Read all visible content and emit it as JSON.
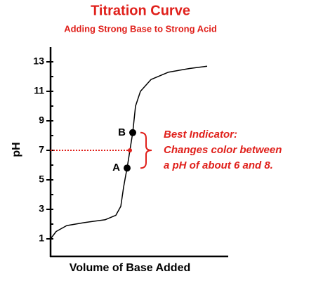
{
  "chart_data": {
    "type": "line",
    "title": "Titration Curve",
    "subtitle": "Adding Strong Base to Strong Acid",
    "x_label": "Volume of Base Added",
    "y_label": "pH",
    "title_color": "#e0201b",
    "xlim": [
      0,
      100
    ],
    "ylim": [
      0,
      14
    ],
    "yticks": [
      1,
      3,
      5,
      7,
      9,
      11,
      13
    ],
    "minor_yticks": [
      2,
      4,
      6,
      8,
      10,
      12
    ],
    "x": [
      0,
      3.2,
      9.2,
      19.2,
      31.2,
      37.2,
      40,
      41.6,
      42.8,
      43.6,
      45.2,
      46.8,
      48.4,
      51.2,
      57.2,
      67.2,
      79.2,
      89.2
    ],
    "series": [
      {
        "color": "#000000",
        "values": [
          1.0,
          1.5,
          1.9,
          2.1,
          2.3,
          2.6,
          3.2,
          4.5,
          5.3,
          5.8,
          7.0,
          8.2,
          10.0,
          11.0,
          11.8,
          12.3,
          12.55,
          12.7
        ]
      }
    ],
    "points": [
      {
        "label": "A",
        "x": 43.6,
        "y": 5.8
      },
      {
        "label": "B",
        "x": 46.8,
        "y": 8.2
      }
    ],
    "indicator": {
      "x": 45.2,
      "y": 7,
      "color": "#e0201b"
    },
    "annotation": [
      "Best Indicator:",
      "Changes color between",
      "a pH of about 6 and 8."
    ]
  }
}
